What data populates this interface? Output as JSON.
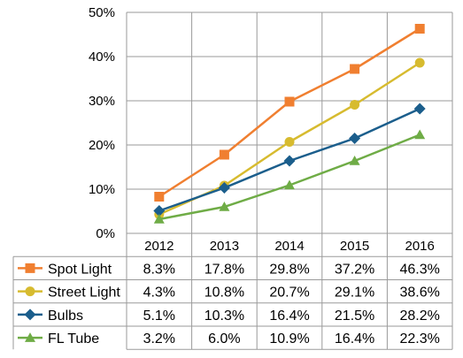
{
  "chart_data": {
    "type": "line",
    "title": "",
    "xlabel": "",
    "ylabel": "",
    "categories": [
      "2012",
      "2013",
      "2014",
      "2015",
      "2016"
    ],
    "ylim": [
      0,
      50
    ],
    "ytick_labels": [
      "0%",
      "10%",
      "20%",
      "30%",
      "40%",
      "50%"
    ],
    "grid": true,
    "legend": "data-table",
    "series": [
      {
        "name": "Spot Light",
        "color": "#F07F30",
        "marker": "square",
        "values": [
          8.3,
          17.8,
          29.8,
          37.2,
          46.3
        ],
        "labels": [
          "8.3%",
          "17.8%",
          "29.8%",
          "37.2%",
          "46.3%"
        ]
      },
      {
        "name": "Street Light",
        "color": "#D7BB2F",
        "marker": "circle",
        "values": [
          4.3,
          10.8,
          20.7,
          29.1,
          38.6
        ],
        "labels": [
          "4.3%",
          "10.8%",
          "20.7%",
          "29.1%",
          "38.6%"
        ]
      },
      {
        "name": "Bulbs",
        "color": "#1B5E8C",
        "marker": "diamond",
        "values": [
          5.1,
          10.3,
          16.4,
          21.5,
          28.2
        ],
        "labels": [
          "5.1%",
          "10.3%",
          "16.4%",
          "21.5%",
          "28.2%"
        ]
      },
      {
        "name": "FL Tube",
        "color": "#6FAC46",
        "marker": "triangle",
        "values": [
          3.2,
          6.0,
          10.9,
          16.4,
          22.3
        ],
        "labels": [
          "3.2%",
          "6.0%",
          "10.9%",
          "16.4%",
          "22.3%"
        ]
      }
    ]
  }
}
